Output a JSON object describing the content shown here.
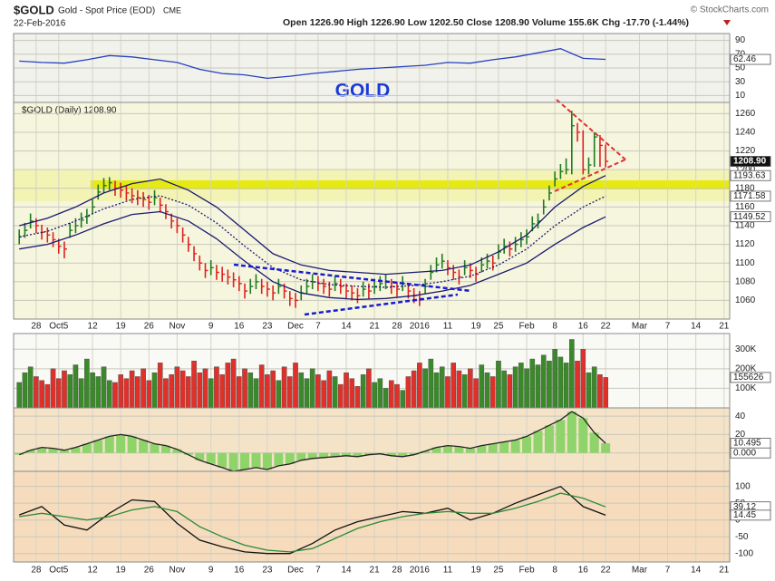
{
  "header": {
    "symbol": "$GOLD",
    "name": "Gold - Spot Price (EOD)",
    "exchange": "CME",
    "date": "22-Feb-2016",
    "quote": "Open 1226.90 High 1226.90 Low 1202.50 Close 1208.90 Volume 155.6K Chg -17.70 (-1.44%)",
    "credit": "© StockCharts.com"
  },
  "annotation": "GOLD",
  "xaxis": {
    "xlim": [
      -1,
      126
    ],
    "xticks": [
      {
        "value": 3,
        "label": "28"
      },
      {
        "value": 7,
        "label": "Oct5"
      },
      {
        "value": 13,
        "label": "12"
      },
      {
        "value": 18,
        "label": "19"
      },
      {
        "value": 23,
        "label": "26"
      },
      {
        "value": 28,
        "label": "Nov"
      },
      {
        "value": 34,
        "label": "9"
      },
      {
        "value": 39,
        "label": "16"
      },
      {
        "value": 44,
        "label": "23"
      },
      {
        "value": 49,
        "label": "Dec"
      },
      {
        "value": 53,
        "label": "7"
      },
      {
        "value": 58,
        "label": "14"
      },
      {
        "value": 63,
        "label": "21"
      },
      {
        "value": 67,
        "label": "28"
      },
      {
        "value": 71,
        "label": "2016"
      },
      {
        "value": 76,
        "label": "11"
      },
      {
        "value": 81,
        "label": "19"
      },
      {
        "value": 85,
        "label": "25"
      },
      {
        "value": 90,
        "label": "Feb"
      },
      {
        "value": 95,
        "label": "8"
      },
      {
        "value": 100,
        "label": "16"
      },
      {
        "value": 104,
        "label": "22"
      },
      {
        "value": 110,
        "label": "Mar"
      },
      {
        "value": 115,
        "label": "7"
      },
      {
        "value": 120,
        "label": "14"
      },
      {
        "value": 125,
        "label": "21"
      }
    ]
  },
  "chart_data": [
    {
      "type": "ohlc",
      "legend": "$GOLD (Daily) 1208.90",
      "up_color": "#1f7a1f",
      "down_color": "#e02020",
      "close": [
        1128,
        1135,
        1145,
        1140,
        1133,
        1130,
        1125,
        1118,
        1115,
        1135,
        1140,
        1146,
        1150,
        1160,
        1176,
        1183,
        1186,
        1180,
        1178,
        1175,
        1172,
        1170,
        1168,
        1165,
        1170,
        1162,
        1155,
        1145,
        1140,
        1130,
        1120,
        1110,
        1100,
        1092,
        1095,
        1090,
        1088,
        1085,
        1082,
        1078,
        1070,
        1075,
        1080,
        1075,
        1072,
        1068,
        1075,
        1070,
        1062,
        1060,
        1068,
        1075,
        1080,
        1078,
        1075,
        1072,
        1078,
        1075,
        1070,
        1068,
        1065,
        1072,
        1070,
        1075,
        1078,
        1080,
        1075,
        1072,
        1078,
        1070,
        1065,
        1062,
        1075,
        1090,
        1098,
        1102,
        1095,
        1090,
        1085,
        1095,
        1092,
        1088,
        1098,
        1102,
        1100,
        1112,
        1118,
        1115,
        1120,
        1125,
        1128,
        1142,
        1145,
        1160,
        1175,
        1190,
        1198,
        1200,
        1247,
        1240,
        1200,
        1205,
        1235,
        1226,
        1208.9
      ],
      "high": [
        1136,
        1143,
        1153,
        1148,
        1141,
        1138,
        1133,
        1126,
        1123,
        1143,
        1148,
        1154,
        1158,
        1168,
        1184,
        1191,
        1192,
        1188,
        1186,
        1183,
        1180,
        1178,
        1176,
        1173,
        1178,
        1170,
        1163,
        1153,
        1148,
        1138,
        1128,
        1118,
        1108,
        1100,
        1103,
        1098,
        1096,
        1093,
        1090,
        1086,
        1078,
        1083,
        1088,
        1083,
        1080,
        1076,
        1083,
        1078,
        1070,
        1068,
        1076,
        1083,
        1088,
        1086,
        1083,
        1080,
        1086,
        1083,
        1078,
        1076,
        1073,
        1080,
        1078,
        1083,
        1086,
        1088,
        1083,
        1080,
        1086,
        1078,
        1073,
        1070,
        1083,
        1098,
        1106,
        1110,
        1103,
        1098,
        1093,
        1103,
        1100,
        1096,
        1106,
        1110,
        1108,
        1120,
        1126,
        1123,
        1128,
        1133,
        1136,
        1150,
        1153,
        1168,
        1183,
        1198,
        1206,
        1212,
        1263,
        1250,
        1242,
        1213,
        1240,
        1237,
        1226.9
      ],
      "low": [
        1120,
        1127,
        1137,
        1132,
        1125,
        1122,
        1117,
        1110,
        1105,
        1127,
        1132,
        1138,
        1142,
        1152,
        1168,
        1175,
        1178,
        1172,
        1170,
        1167,
        1164,
        1162,
        1160,
        1157,
        1162,
        1154,
        1147,
        1137,
        1132,
        1122,
        1112,
        1102,
        1092,
        1084,
        1087,
        1082,
        1080,
        1077,
        1074,
        1070,
        1062,
        1067,
        1072,
        1067,
        1064,
        1060,
        1067,
        1062,
        1054,
        1052,
        1060,
        1067,
        1072,
        1070,
        1067,
        1064,
        1070,
        1067,
        1062,
        1060,
        1057,
        1064,
        1062,
        1067,
        1070,
        1072,
        1067,
        1064,
        1070,
        1062,
        1057,
        1054,
        1067,
        1082,
        1090,
        1094,
        1087,
        1082,
        1077,
        1087,
        1084,
        1080,
        1090,
        1094,
        1092,
        1104,
        1110,
        1107,
        1112,
        1117,
        1120,
        1134,
        1137,
        1152,
        1167,
        1182,
        1190,
        1195,
        1195,
        1230,
        1195,
        1195,
        1203,
        1203,
        1202.5
      ],
      "series": [
        {
          "color": "#1a1a70",
          "x": [
            0,
            5,
            10,
            15,
            20,
            25,
            30,
            35,
            40,
            45,
            50,
            55,
            60,
            65,
            70,
            75,
            80,
            85,
            90,
            95,
            100,
            104
          ],
          "values": [
            1140,
            1148,
            1160,
            1175,
            1185,
            1190,
            1178,
            1160,
            1135,
            1110,
            1098,
            1092,
            1090,
            1088,
            1090,
            1092,
            1098,
            1112,
            1130,
            1160,
            1182,
            1193.63
          ]
        },
        {
          "color": "#1a1a70",
          "style": "dotted",
          "x": [
            0,
            5,
            10,
            15,
            20,
            25,
            30,
            35,
            40,
            45,
            50,
            55,
            60,
            65,
            70,
            75,
            80,
            85,
            90,
            95,
            100,
            104
          ],
          "values": [
            1128,
            1134,
            1145,
            1158,
            1168,
            1172,
            1162,
            1143,
            1118,
            1095,
            1082,
            1077,
            1075,
            1074,
            1076,
            1080,
            1086,
            1098,
            1115,
            1140,
            1160,
            1171.58
          ]
        },
        {
          "color": "#1a1a70",
          "x": [
            0,
            5,
            10,
            15,
            20,
            25,
            30,
            35,
            40,
            45,
            50,
            55,
            60,
            65,
            70,
            75,
            80,
            85,
            90,
            95,
            100,
            104
          ],
          "values": [
            1115,
            1120,
            1130,
            1142,
            1152,
            1155,
            1145,
            1126,
            1102,
            1080,
            1068,
            1063,
            1061,
            1062,
            1065,
            1070,
            1076,
            1088,
            1100,
            1120,
            1138,
            1149.52
          ]
        }
      ],
      "ylim": [
        1040,
        1272
      ],
      "yticks": [
        1060,
        1080,
        1100,
        1120,
        1140,
        1160,
        1180,
        1200,
        1220,
        1240,
        1260
      ],
      "last_labels": [
        {
          "value": 1208.9,
          "label": "1208.90"
        },
        1193.63,
        1171.58,
        1149.52
      ]
    },
    {
      "type": "line",
      "series": [
        {
          "color": "#2540c0",
          "x": [
            0,
            4,
            8,
            12,
            16,
            20,
            24,
            28,
            32,
            36,
            40,
            44,
            48,
            52,
            56,
            60,
            64,
            68,
            72,
            76,
            80,
            84,
            88,
            92,
            96,
            100,
            104
          ],
          "values": [
            60,
            58,
            57,
            62,
            68,
            66,
            62,
            58,
            48,
            42,
            40,
            35,
            38,
            42,
            45,
            48,
            50,
            52,
            54,
            58,
            57,
            62,
            66,
            72,
            78,
            64,
            62.46
          ]
        }
      ],
      "ylim": [
        0,
        100
      ],
      "yticks": [
        10,
        30,
        50,
        70,
        90
      ],
      "last_labels": [
        62.46
      ]
    },
    {
      "type": "bar",
      "up_color": "#3a8a2a",
      "down_color": "#e0302a",
      "values": [
        130000,
        180000,
        210000,
        160000,
        140000,
        120000,
        200000,
        150000,
        190000,
        170000,
        220000,
        150000,
        250000,
        180000,
        160000,
        210000,
        140000,
        130000,
        170000,
        150000,
        190000,
        160000,
        200000,
        140000,
        180000,
        230000,
        150000,
        170000,
        210000,
        190000,
        160000,
        240000,
        180000,
        200000,
        150000,
        210000,
        170000,
        230000,
        250000,
        160000,
        200000,
        180000,
        150000,
        220000,
        170000,
        190000,
        140000,
        210000,
        160000,
        230000,
        180000,
        150000,
        200000,
        170000,
        140000,
        190000,
        160000,
        120000,
        180000,
        150000,
        110000,
        170000,
        200000,
        130000,
        150000,
        100000,
        140000,
        120000,
        90000,
        160000,
        190000,
        230000,
        200000,
        250000,
        180000,
        210000,
        160000,
        230000,
        190000,
        170000,
        200000,
        150000,
        220000,
        180000,
        160000,
        240000,
        190000,
        170000,
        210000,
        230000,
        200000,
        250000,
        220000,
        270000,
        240000,
        300000,
        260000,
        230000,
        350000,
        240000,
        300000,
        180000,
        210000,
        170000,
        155626
      ],
      "ylim": [
        0,
        380000
      ],
      "yticks": [
        {
          "value": 100000,
          "label": "100K"
        },
        {
          "value": 200000,
          "label": "200K"
        },
        {
          "value": 300000,
          "label": "300K"
        }
      ],
      "last_labels": [
        155626
      ]
    },
    {
      "type": "histogram",
      "series": [
        {
          "color": "#8fd46a",
          "x": [
            0,
            2,
            4,
            6,
            8,
            10,
            12,
            14,
            16,
            18,
            20,
            22,
            24,
            26,
            28,
            30,
            32,
            34,
            36,
            38,
            40,
            42,
            44,
            46,
            48,
            50,
            52,
            54,
            56,
            58,
            60,
            62,
            64,
            66,
            68,
            70,
            72,
            74,
            76,
            78,
            80,
            82,
            84,
            86,
            88,
            90,
            92,
            94,
            96,
            98,
            100,
            102,
            104
          ],
          "values": [
            -2,
            3,
            6,
            5,
            3,
            6,
            10,
            14,
            18,
            20,
            18,
            14,
            10,
            8,
            4,
            -2,
            -8,
            -12,
            -16,
            -20,
            -18,
            -16,
            -18,
            -14,
            -12,
            -8,
            -6,
            -5,
            -4,
            -3,
            -4,
            -2,
            -1,
            -3,
            -4,
            -2,
            2,
            6,
            8,
            7,
            5,
            8,
            10,
            12,
            14,
            18,
            24,
            30,
            36,
            45,
            38,
            22,
            10.495
          ]
        }
      ],
      "ylim": [
        -20,
        49
      ],
      "yticks": [
        0,
        20,
        40
      ],
      "last_labels": [
        10.495,
        {
          "value": 0,
          "label": "0.000"
        }
      ]
    },
    {
      "type": "line",
      "series": [
        {
          "color": "#111111",
          "x": [
            0,
            4,
            8,
            12,
            16,
            20,
            24,
            28,
            32,
            36,
            40,
            44,
            48,
            52,
            56,
            60,
            64,
            68,
            72,
            76,
            80,
            84,
            88,
            92,
            96,
            100,
            104
          ],
          "values": [
            15,
            40,
            -15,
            -30,
            20,
            60,
            55,
            -10,
            -60,
            -80,
            -95,
            -100,
            -100,
            -70,
            -30,
            -5,
            10,
            25,
            20,
            35,
            0,
            20,
            50,
            75,
            100,
            40,
            14.45
          ]
        },
        {
          "color": "#2a8a3a",
          "x": [
            0,
            4,
            8,
            12,
            16,
            20,
            24,
            28,
            32,
            36,
            40,
            44,
            48,
            52,
            56,
            60,
            64,
            68,
            72,
            76,
            80,
            84,
            88,
            92,
            96,
            100,
            104
          ],
          "values": [
            10,
            20,
            10,
            0,
            10,
            30,
            40,
            25,
            -20,
            -50,
            -75,
            -90,
            -95,
            -85,
            -55,
            -25,
            -5,
            10,
            20,
            25,
            20,
            20,
            35,
            55,
            80,
            65,
            39.12
          ]
        }
      ],
      "ylim": [
        -125,
        145
      ],
      "yticks": [
        -100,
        -50,
        0,
        50,
        100
      ],
      "last_labels": [
        39.12,
        14.45
      ]
    }
  ]
}
